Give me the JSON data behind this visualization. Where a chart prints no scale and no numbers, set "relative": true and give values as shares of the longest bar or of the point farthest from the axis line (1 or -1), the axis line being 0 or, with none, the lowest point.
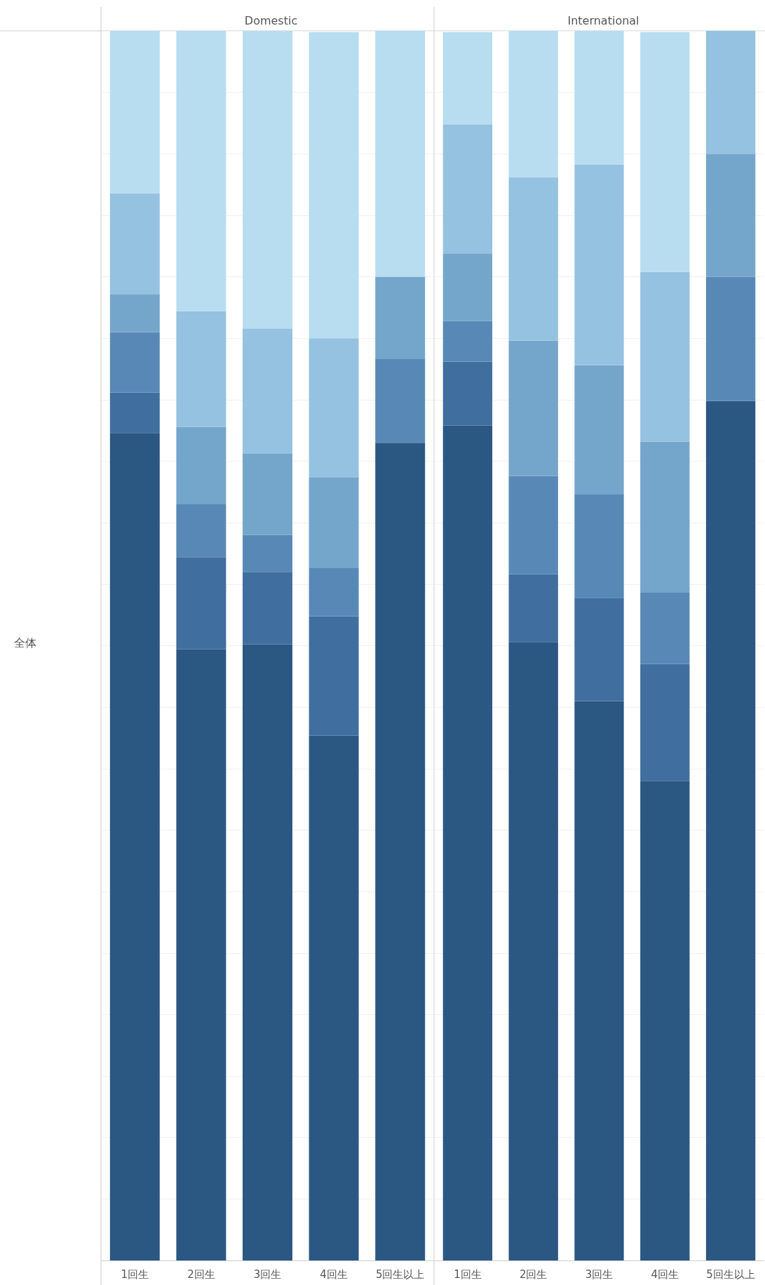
{
  "chart_data": [
    {
      "type": "bar",
      "title": "Domestic",
      "ylabel": "全体",
      "relative": true,
      "stacked": true,
      "grid": "y",
      "categories": [
        "1回生",
        "2回生",
        "3回生",
        "4回生",
        "5回生以上"
      ],
      "series": [
        {
          "color": "#2b5783",
          "values": [
            0.673,
            0.497,
            0.501,
            0.427,
            0.665
          ]
        },
        {
          "color": "#406f9f",
          "values": [
            0.033,
            0.075,
            0.059,
            0.097,
            0
          ]
        },
        {
          "color": "#5889b6",
          "values": [
            0.049,
            0.043,
            0.03,
            0.039,
            0.068
          ]
        },
        {
          "color": "#74a6cb",
          "values": [
            0.031,
            0.063,
            0.066,
            0.074,
            0.067
          ]
        },
        {
          "color": "#95c2e0",
          "values": [
            0.082,
            0.094,
            0.102,
            0.113,
            0
          ]
        },
        {
          "color": "#b8ddf0",
          "values": [
            0.132,
            0.228,
            0.242,
            0.249,
            0.2
          ]
        }
      ]
    },
    {
      "type": "bar",
      "title": "International",
      "relative": true,
      "stacked": true,
      "grid": "y",
      "categories": [
        "1回生",
        "2回生",
        "3回生",
        "4回生",
        "5回生以上"
      ],
      "series": [
        {
          "color": "#2b5783",
          "values": [
            0.679,
            0.503,
            0.455,
            0.39,
            0.699
          ]
        },
        {
          "color": "#406f9f",
          "values": [
            0.052,
            0.055,
            0.084,
            0.095,
            0
          ]
        },
        {
          "color": "#5889b6",
          "values": [
            0.033,
            0.08,
            0.084,
            0.058,
            0.101
          ]
        },
        {
          "color": "#74a6cb",
          "values": [
            0.055,
            0.11,
            0.105,
            0.123,
            0.1
          ]
        },
        {
          "color": "#95c2e0",
          "values": [
            0.105,
            0.133,
            0.163,
            0.138,
            0.1
          ]
        },
        {
          "color": "#b8ddf0",
          "values": [
            0.075,
            0.119,
            0.109,
            0.195,
            0
          ]
        }
      ]
    }
  ]
}
